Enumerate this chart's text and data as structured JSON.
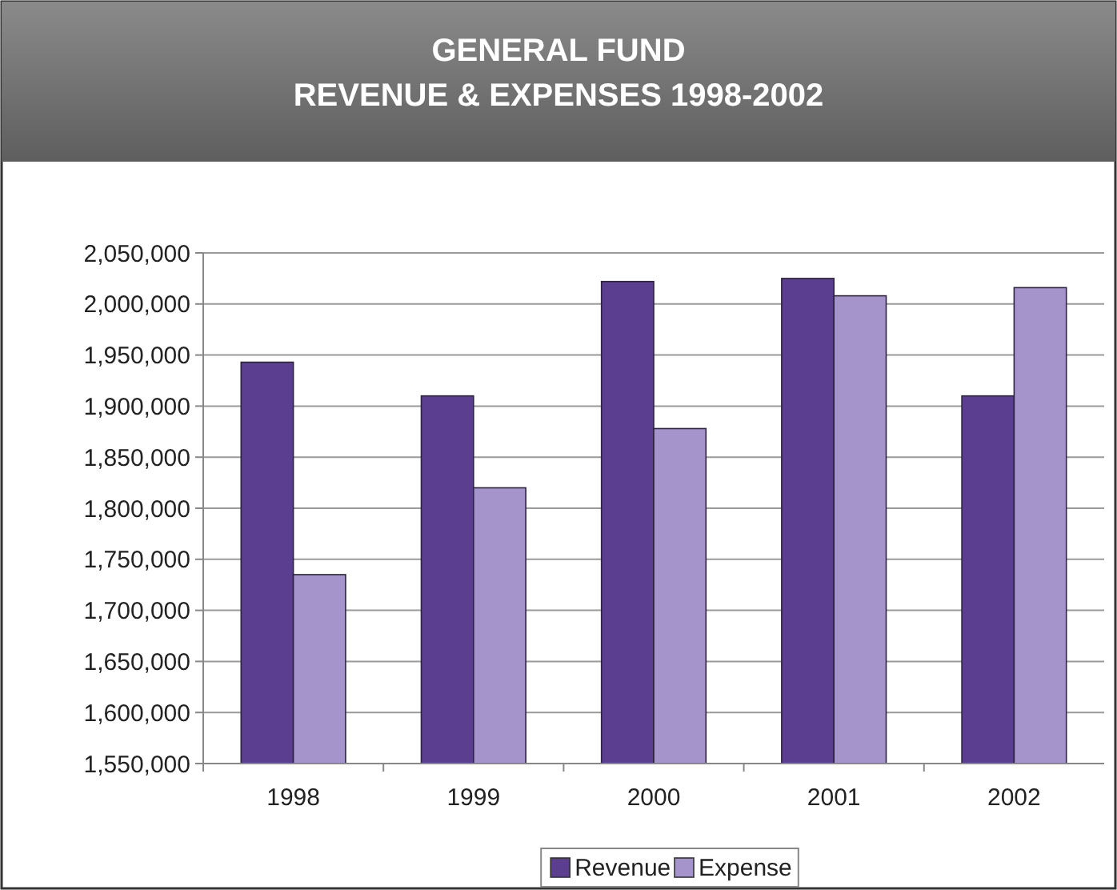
{
  "chart_data": {
    "type": "bar",
    "title": "GENERAL FUND\nREVENUE & EXPENSES 1998-2002",
    "categories": [
      "1998",
      "1999",
      "2000",
      "2001",
      "2002"
    ],
    "series": [
      {
        "name": "Revenue",
        "color": "#5b3e8f",
        "values": [
          1943000,
          1910000,
          2022000,
          2025000,
          1910000
        ]
      },
      {
        "name": "Expense",
        "color": "#a593cc",
        "values": [
          1735000,
          1820000,
          1878000,
          2008000,
          2016000
        ]
      }
    ],
    "ylim": [
      1550000,
      2050000
    ],
    "yticks": [
      {
        "value": 1550000,
        "label": "1,550,000"
      },
      {
        "value": 1600000,
        "label": "1,600,000"
      },
      {
        "value": 1650000,
        "label": "1,650,000"
      },
      {
        "value": 1700000,
        "label": "1,700,000"
      },
      {
        "value": 1750000,
        "label": "1,750,000"
      },
      {
        "value": 1800000,
        "label": "1,800,000"
      },
      {
        "value": 1850000,
        "label": "1,850,000"
      },
      {
        "value": 1900000,
        "label": "1,900,000"
      },
      {
        "value": 1950000,
        "label": "1,950,000"
      },
      {
        "value": 2000000,
        "label": "2,000,000"
      },
      {
        "value": 2050000,
        "label": "2,050,000"
      }
    ],
    "grid": "y",
    "legend": "bottom"
  }
}
